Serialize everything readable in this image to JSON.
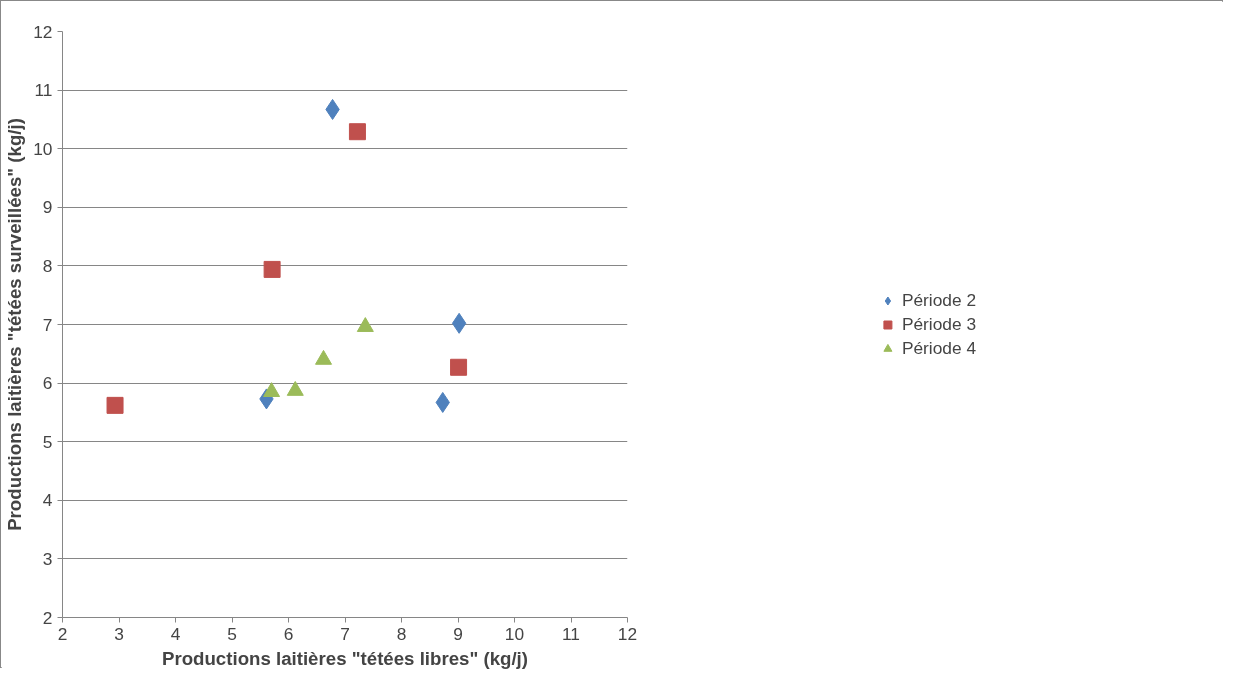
{
  "chart_data": {
    "type": "scatter",
    "xlabel": "Productions laitières \"tétées libres\" (kg/j)",
    "ylabel": "Productions laitières \"tétées surveillées\" (kg/j)",
    "xlim": [
      2,
      12
    ],
    "xticks": [
      2,
      3,
      4,
      5,
      6,
      7,
      8,
      9,
      10,
      11,
      12
    ],
    "ylim": [
      2,
      12
    ],
    "yticks": [
      2,
      3,
      4,
      5,
      6,
      7,
      8,
      9,
      10,
      11,
      12
    ],
    "grid": "y",
    "legend": "right",
    "series": [
      {
        "name": "Période 2",
        "color": "#4f81bd",
        "marker": "diamond",
        "x": [
          5.61,
          6.78,
          8.73,
          9.02
        ],
        "values": [
          5.73,
          10.67,
          5.67,
          7.02
        ]
      },
      {
        "name": "Période 3",
        "color": "#c0504d",
        "marker": "square",
        "x": [
          2.93,
          5.71,
          7.22,
          9.01
        ],
        "values": [
          5.62,
          7.94,
          10.29,
          6.27
        ]
      },
      {
        "name": "Période 4",
        "color": "#9bbb59",
        "marker": "triangle",
        "x": [
          5.7,
          6.12,
          6.62,
          7.36
        ],
        "values": [
          5.85,
          5.87,
          6.4,
          6.96
        ]
      }
    ]
  }
}
